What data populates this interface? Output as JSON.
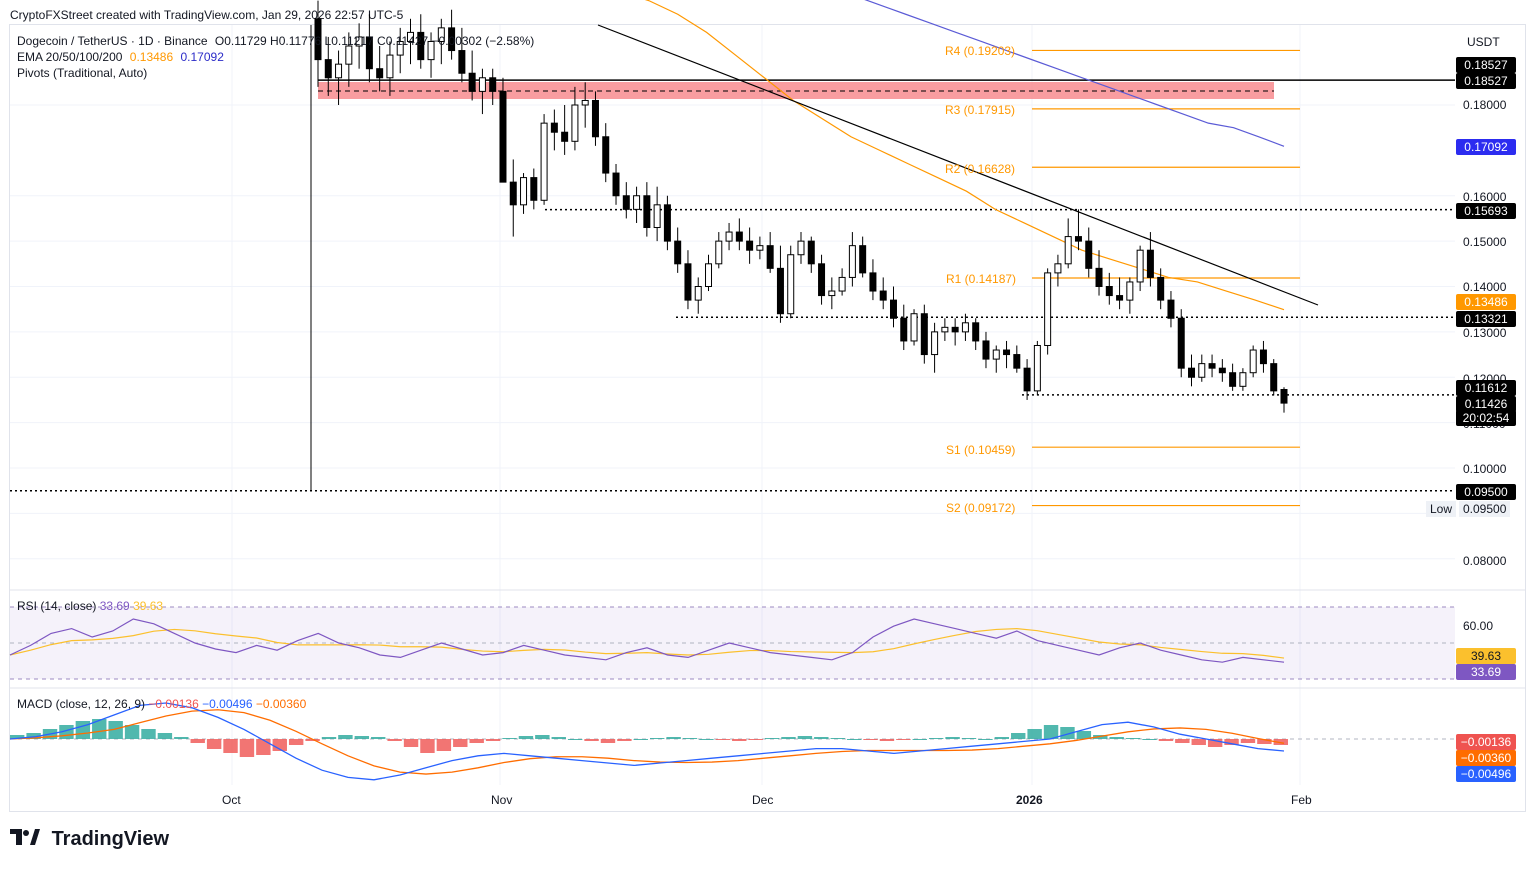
{
  "credit": "CryptoFXStreet created with TradingView.com, Jan 29, 2026 22:57 UTC-5",
  "legend": {
    "symbol": "Dogecoin / TetherUS · 1D · Binance",
    "ohlc": "O0.11729  H0.11776  L0.11217  C0.11427  −0.00302 (−2.58%)",
    "ema_label": "EMA 20/50/100/200",
    "ema_v1": "0.13486",
    "ema_v2": "0.17092",
    "pivots": "Pivots (Traditional, Auto)"
  },
  "currency": "USDT",
  "colors": {
    "up": "#ffffff",
    "down": "#000000",
    "ema50": "#ff9800",
    "ema200": "#5b5bd6",
    "pivot": "#ff9800",
    "zone": "#f77c80",
    "rsi": "#7e57c2",
    "rsi_ma": "#fbc02d",
    "macd": "#2962ff",
    "signal": "#ff6d00",
    "hist_pos": "#26a69a",
    "hist_neg": "#ef5350"
  },
  "pivot_labels": {
    "r4": "R4 (0.19203)",
    "r3": "R3 (0.17915)",
    "r2": "R2 (0.16628)",
    "r1": "R1 (0.14187)",
    "s1": "S1 (0.10459)",
    "s2": "S2 (0.09172)"
  },
  "price_axis": [
    "0.18000",
    "0.16000",
    "0.15000",
    "0.14000",
    "0.13000",
    "0.12000",
    "0.11000",
    "0.10000",
    "0.08000"
  ],
  "price_tags": {
    "t18527a": "0.18527",
    "t18527b": "0.18527",
    "t17092": "0.17092",
    "t15693": "0.15693",
    "t13486": "0.13486",
    "t13321": "0.13321",
    "t11612": "0.11612",
    "t11426": "0.11426",
    "countdown": "20:02:54",
    "t09500": "0.09500",
    "low_label": "Low",
    "low_value": "0.09500"
  },
  "time_axis": [
    "Oct",
    "Nov",
    "Dec",
    "2026",
    "Feb"
  ],
  "rsi": {
    "title": "RSI (14, close)",
    "v1": "33.69",
    "v2": "39.63",
    "level": "60.00",
    "tag1": "39.63",
    "tag2": "33.69"
  },
  "macd": {
    "title": "MACD (close, 12, 26, 9)",
    "v1": "−0.00136",
    "v2": "−0.00496",
    "v3": "−0.00360",
    "tag1": "−0.00136",
    "tag2": "−0.00360",
    "tag3": "−0.00496"
  },
  "logo_text": "TradingView",
  "chart_data": {
    "type": "candlestick",
    "title": "Dogecoin / TetherUS · 1D · Binance",
    "x_ticks": [
      "Oct",
      "Nov",
      "Dec",
      "2026",
      "Feb"
    ],
    "ylim": [
      0.076,
      0.205
    ],
    "series_ohlc": [
      [
        0.199,
        0.203,
        0.184,
        0.19
      ],
      [
        0.19,
        0.195,
        0.182,
        0.186
      ],
      [
        0.186,
        0.192,
        0.18,
        0.189
      ],
      [
        0.189,
        0.196,
        0.184,
        0.193
      ],
      [
        0.193,
        0.198,
        0.188,
        0.195
      ],
      [
        0.195,
        0.2,
        0.185,
        0.188
      ],
      [
        0.188,
        0.193,
        0.183,
        0.186
      ],
      [
        0.186,
        0.194,
        0.182,
        0.191
      ],
      [
        0.191,
        0.197,
        0.187,
        0.194
      ],
      [
        0.194,
        0.199,
        0.189,
        0.196
      ],
      [
        0.196,
        0.2,
        0.188,
        0.19
      ],
      [
        0.19,
        0.196,
        0.186,
        0.194
      ],
      [
        0.194,
        0.199,
        0.189,
        0.197
      ],
      [
        0.197,
        0.201,
        0.19,
        0.192
      ],
      [
        0.192,
        0.197,
        0.185,
        0.187
      ],
      [
        0.187,
        0.192,
        0.181,
        0.183
      ],
      [
        0.183,
        0.188,
        0.178,
        0.186
      ],
      [
        0.186,
        0.188,
        0.18,
        0.183
      ],
      [
        0.183,
        0.186,
        0.176,
        0.163
      ],
      [
        0.163,
        0.168,
        0.151,
        0.158
      ],
      [
        0.158,
        0.165,
        0.156,
        0.164
      ],
      [
        0.164,
        0.166,
        0.157,
        0.159
      ],
      [
        0.159,
        0.178,
        0.158,
        0.176
      ],
      [
        0.176,
        0.179,
        0.17,
        0.174
      ],
      [
        0.174,
        0.18,
        0.169,
        0.172
      ],
      [
        0.172,
        0.184,
        0.17,
        0.18
      ],
      [
        0.18,
        0.185,
        0.175,
        0.181
      ],
      [
        0.181,
        0.183,
        0.171,
        0.173
      ],
      [
        0.173,
        0.176,
        0.163,
        0.165
      ],
      [
        0.165,
        0.167,
        0.158,
        0.16
      ],
      [
        0.16,
        0.163,
        0.155,
        0.157
      ],
      [
        0.157,
        0.162,
        0.154,
        0.16
      ],
      [
        0.16,
        0.163,
        0.151,
        0.153
      ],
      [
        0.153,
        0.162,
        0.15,
        0.158
      ],
      [
        0.158,
        0.16,
        0.148,
        0.15
      ],
      [
        0.15,
        0.153,
        0.143,
        0.145
      ],
      [
        0.145,
        0.148,
        0.135,
        0.137
      ],
      [
        0.137,
        0.142,
        0.134,
        0.14
      ],
      [
        0.14,
        0.147,
        0.139,
        0.145
      ],
      [
        0.145,
        0.152,
        0.144,
        0.15
      ],
      [
        0.15,
        0.154,
        0.148,
        0.152
      ],
      [
        0.152,
        0.155,
        0.148,
        0.15
      ],
      [
        0.15,
        0.153,
        0.145,
        0.148
      ],
      [
        0.148,
        0.151,
        0.146,
        0.149
      ],
      [
        0.149,
        0.152,
        0.143,
        0.144
      ],
      [
        0.144,
        0.149,
        0.132,
        0.134
      ],
      [
        0.134,
        0.149,
        0.133,
        0.147
      ],
      [
        0.147,
        0.152,
        0.145,
        0.15
      ],
      [
        0.15,
        0.151,
        0.143,
        0.145
      ],
      [
        0.145,
        0.147,
        0.136,
        0.138
      ],
      [
        0.138,
        0.142,
        0.135,
        0.139
      ],
      [
        0.139,
        0.144,
        0.138,
        0.142
      ],
      [
        0.142,
        0.152,
        0.14,
        0.149
      ],
      [
        0.149,
        0.151,
        0.142,
        0.143
      ],
      [
        0.143,
        0.146,
        0.137,
        0.139
      ],
      [
        0.139,
        0.142,
        0.135,
        0.137
      ],
      [
        0.137,
        0.14,
        0.131,
        0.133
      ],
      [
        0.133,
        0.136,
        0.126,
        0.128
      ],
      [
        0.128,
        0.135,
        0.127,
        0.134
      ],
      [
        0.134,
        0.136,
        0.123,
        0.125
      ],
      [
        0.125,
        0.132,
        0.121,
        0.13
      ],
      [
        0.13,
        0.133,
        0.128,
        0.131
      ],
      [
        0.131,
        0.133,
        0.127,
        0.13
      ],
      [
        0.13,
        0.134,
        0.128,
        0.132
      ],
      [
        0.132,
        0.133,
        0.126,
        0.128
      ],
      [
        0.128,
        0.13,
        0.122,
        0.124
      ],
      [
        0.124,
        0.127,
        0.121,
        0.126
      ],
      [
        0.126,
        0.128,
        0.122,
        0.125
      ],
      [
        0.125,
        0.127,
        0.121,
        0.122
      ],
      [
        0.122,
        0.124,
        0.115,
        0.117
      ],
      [
        0.117,
        0.128,
        0.116,
        0.127
      ],
      [
        0.127,
        0.144,
        0.125,
        0.143
      ],
      [
        0.143,
        0.147,
        0.14,
        0.145
      ],
      [
        0.145,
        0.155,
        0.144,
        0.151
      ],
      [
        0.151,
        0.157,
        0.148,
        0.15
      ],
      [
        0.15,
        0.153,
        0.142,
        0.144
      ],
      [
        0.144,
        0.148,
        0.138,
        0.14
      ],
      [
        0.14,
        0.143,
        0.136,
        0.138
      ],
      [
        0.138,
        0.142,
        0.135,
        0.137
      ],
      [
        0.137,
        0.142,
        0.134,
        0.141
      ],
      [
        0.141,
        0.149,
        0.139,
        0.148
      ],
      [
        0.148,
        0.152,
        0.14,
        0.142
      ],
      [
        0.142,
        0.144,
        0.135,
        0.137
      ],
      [
        0.137,
        0.139,
        0.131,
        0.133
      ],
      [
        0.133,
        0.135,
        0.12,
        0.122
      ],
      [
        0.122,
        0.125,
        0.118,
        0.12
      ],
      [
        0.12,
        0.125,
        0.119,
        0.123
      ],
      [
        0.123,
        0.125,
        0.12,
        0.122
      ],
      [
        0.122,
        0.124,
        0.119,
        0.121
      ],
      [
        0.121,
        0.123,
        0.117,
        0.118
      ],
      [
        0.118,
        0.122,
        0.117,
        0.121
      ],
      [
        0.121,
        0.127,
        0.12,
        0.126
      ],
      [
        0.126,
        0.128,
        0.121,
        0.123
      ],
      [
        0.123,
        0.124,
        0.116,
        0.117
      ],
      [
        0.1173,
        0.1178,
        0.1122,
        0.1143
      ]
    ],
    "ema50_approx": [
      0.205,
      0.203,
      0.2,
      0.196,
      0.191,
      0.186,
      0.181,
      0.177,
      0.173,
      0.17,
      0.167,
      0.164,
      0.161,
      0.157,
      0.154,
      0.151,
      0.148,
      0.146,
      0.144,
      0.142,
      0.141,
      0.139,
      0.137,
      0.1349
    ],
    "ema200_approx": [
      0.205,
      0.204,
      0.202,
      0.2,
      0.198,
      0.196,
      0.194,
      0.192,
      0.19,
      0.188,
      0.186,
      0.184,
      0.182,
      0.18,
      0.178,
      0.176,
      0.175,
      0.173,
      0.1709
    ],
    "horizontal_levels": [
      0.18527,
      0.15693,
      0.13321,
      0.11612,
      0.095
    ],
    "pivots": {
      "R4": 0.19203,
      "R3": 0.17915,
      "R2": 0.16628,
      "R1": 0.14187,
      "S1": 0.10459,
      "S2": 0.09172
    },
    "rsi": {
      "last": 33.69,
      "ma_last": 39.63
    },
    "macd": {
      "macd": -0.00496,
      "signal": -0.0036,
      "hist": -0.00136
    }
  }
}
